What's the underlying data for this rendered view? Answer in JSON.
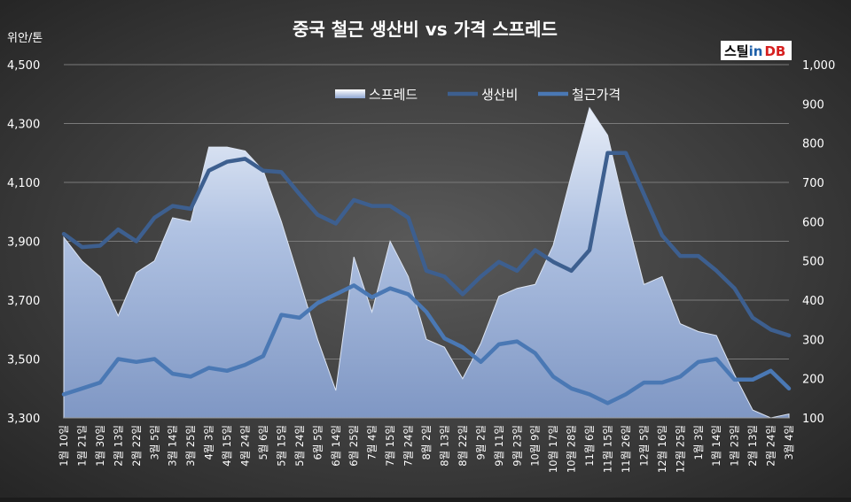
{
  "logo": {
    "part1": "스틸",
    "part2": "in",
    "part3": "DB"
  },
  "chart_data": {
    "type": "line",
    "title": "중국 철근 생산비 vs 가격 스프레드",
    "ylabel_left": "위안/톤",
    "ylim_left": [
      3300,
      4500
    ],
    "yticks_left": [
      "4,500",
      "4,300",
      "4,100",
      "3,900",
      "3,700",
      "3,500",
      "3,300"
    ],
    "ylim_right": [
      100,
      1000
    ],
    "yticks_right": [
      "1,000",
      "900",
      "800",
      "700",
      "600",
      "500",
      "400",
      "300",
      "200",
      "100"
    ],
    "grid": true,
    "legend_position": "top-center",
    "colors": {
      "spread": "#a3b6dc",
      "cost": "#3d5f8f",
      "price": "#4a78b4"
    },
    "categories": [
      "1월 10일",
      "1월 21일",
      "1월 30일",
      "2월 13일",
      "2월 22일",
      "3월 5일",
      "3월 14일",
      "3월 25일",
      "4월 3일",
      "4월 15일",
      "4월 24일",
      "5월 6일",
      "5월 15일",
      "5월 24일",
      "6월 5일",
      "6월 14일",
      "6월 25일",
      "7월 4일",
      "7월 15일",
      "7월 24일",
      "8월 2일",
      "8월 13일",
      "8월 22일",
      "9월 2일",
      "9월 11일",
      "9월 23일",
      "10월 9일",
      "10월 17일",
      "10월 28일",
      "11월 6일",
      "11월 15일",
      "11월 26일",
      "12월 5일",
      "12월 16일",
      "12월 25일",
      "1월 3일",
      "1월 14일",
      "1월 23일",
      "2월 13일",
      "2월 24일",
      "3월 4일"
    ],
    "series": [
      {
        "name": "스프레드",
        "axis": "right",
        "type": "area",
        "values": [
          560,
          500,
          460,
          360,
          470,
          500,
          610,
          600,
          790,
          790,
          780,
          730,
          600,
          450,
          300,
          170,
          510,
          370,
          550,
          460,
          300,
          280,
          200,
          290,
          410,
          430,
          440,
          540,
          720,
          890,
          820,
          620,
          440,
          460,
          340,
          320,
          310,
          210,
          120,
          100,
          110
        ]
      },
      {
        "name": "생산비",
        "axis": "left",
        "type": "line",
        "values": [
          3925,
          3880,
          3885,
          3940,
          3900,
          3980,
          4020,
          4010,
          4140,
          4170,
          4180,
          4140,
          4135,
          4060,
          3990,
          3960,
          4040,
          4020,
          4020,
          3980,
          3800,
          3780,
          3720,
          3780,
          3830,
          3800,
          3870,
          3830,
          3800,
          3870,
          4200,
          4200,
          4060,
          3920,
          3850,
          3850,
          3800,
          3740,
          3640,
          3600,
          3580
        ]
      },
      {
        "name": "철근가격",
        "axis": "left",
        "type": "line",
        "values": [
          3380,
          3400,
          3420,
          3500,
          3490,
          3500,
          3450,
          3440,
          3470,
          3460,
          3480,
          3510,
          3650,
          3640,
          3690,
          3720,
          3750,
          3710,
          3740,
          3720,
          3660,
          3570,
          3540,
          3490,
          3550,
          3560,
          3520,
          3440,
          3400,
          3380,
          3350,
          3380,
          3420,
          3420,
          3440,
          3490,
          3500,
          3430,
          3430,
          3460,
          3400
        ]
      }
    ]
  }
}
